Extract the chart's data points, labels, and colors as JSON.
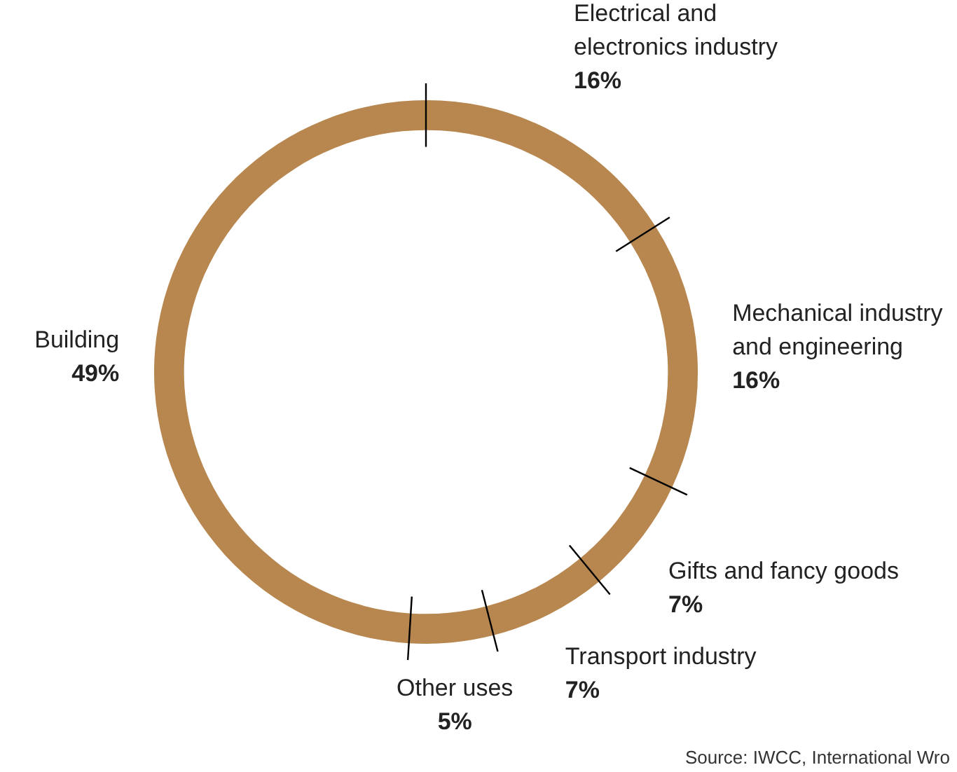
{
  "chart_data": {
    "type": "donut",
    "categories": [
      "Electrical and electronics industry",
      "Mechanical industry and engineering",
      "Gifts and fancy goods",
      "Transport industry",
      "Other uses",
      "Building"
    ],
    "values": [
      16,
      16,
      7,
      7,
      5,
      49
    ],
    "value_labels": [
      "16%",
      "16%",
      "7%",
      "7%",
      "5%",
      "49%"
    ],
    "colors": [
      "#b8874f",
      "#b8874f",
      "#b8874f",
      "#b8874f",
      "#b8874f",
      "#b8874f"
    ],
    "legend": false,
    "annotations": [
      "Source: IWCC, International Wro"
    ]
  }
}
